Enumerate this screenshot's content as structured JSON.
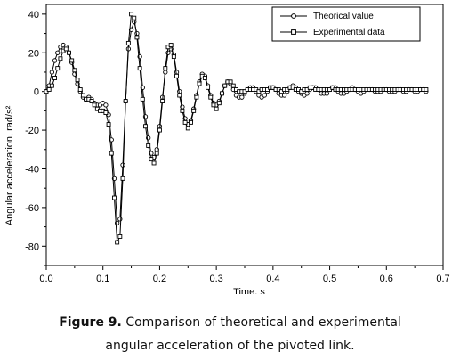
{
  "chart_data": {
    "type": "line",
    "xlabel": "Time, s",
    "ylabel": "Angular acceleration, rad/s²",
    "xlim": [
      0.0,
      0.7
    ],
    "ylim": [
      -90,
      45
    ],
    "xticks": [
      "0.0",
      "0.1",
      "0.2",
      "0.3",
      "0.4",
      "0.5",
      "0.6",
      "0.7"
    ],
    "yticks": [
      "-80",
      "-60",
      "-40",
      "-20",
      "0",
      "20",
      "40"
    ],
    "xtick_values": [
      0.0,
      0.1,
      0.2,
      0.3,
      0.4,
      0.5,
      0.6,
      0.7
    ],
    "ytick_values": [
      -80,
      -60,
      -40,
      -20,
      0,
      20,
      40
    ],
    "legend_position": "top-right",
    "grid": false,
    "series": [
      {
        "name": "Theorical value",
        "marker": "circle",
        "color": "#000000",
        "points": [
          [
            0.0,
            0
          ],
          [
            0.005,
            3
          ],
          [
            0.01,
            10
          ],
          [
            0.015,
            16
          ],
          [
            0.02,
            20
          ],
          [
            0.025,
            23
          ],
          [
            0.03,
            24
          ],
          [
            0.035,
            23
          ],
          [
            0.04,
            20
          ],
          [
            0.045,
            15
          ],
          [
            0.05,
            9
          ],
          [
            0.055,
            4
          ],
          [
            0.06,
            0
          ],
          [
            0.065,
            -3
          ],
          [
            0.07,
            -4
          ],
          [
            0.075,
            -3
          ],
          [
            0.08,
            -4
          ],
          [
            0.085,
            -6
          ],
          [
            0.09,
            -7
          ],
          [
            0.095,
            -7
          ],
          [
            0.1,
            -6
          ],
          [
            0.105,
            -7
          ],
          [
            0.11,
            -12
          ],
          [
            0.115,
            -25
          ],
          [
            0.12,
            -45
          ],
          [
            0.125,
            -68
          ],
          [
            0.13,
            -66
          ],
          [
            0.135,
            -38
          ],
          [
            0.14,
            -5
          ],
          [
            0.145,
            22
          ],
          [
            0.15,
            32
          ],
          [
            0.155,
            36
          ],
          [
            0.16,
            30
          ],
          [
            0.165,
            18
          ],
          [
            0.17,
            2
          ],
          [
            0.175,
            -13
          ],
          [
            0.18,
            -24
          ],
          [
            0.185,
            -32
          ],
          [
            0.19,
            -34
          ],
          [
            0.195,
            -30
          ],
          [
            0.2,
            -18
          ],
          [
            0.205,
            -3
          ],
          [
            0.21,
            10
          ],
          [
            0.215,
            20
          ],
          [
            0.22,
            22
          ],
          [
            0.225,
            19
          ],
          [
            0.23,
            10
          ],
          [
            0.235,
            0
          ],
          [
            0.24,
            -8
          ],
          [
            0.245,
            -14
          ],
          [
            0.25,
            -17
          ],
          [
            0.255,
            -15
          ],
          [
            0.26,
            -9
          ],
          [
            0.265,
            -2
          ],
          [
            0.27,
            5
          ],
          [
            0.275,
            9
          ],
          [
            0.28,
            8
          ],
          [
            0.285,
            3
          ],
          [
            0.29,
            -2
          ],
          [
            0.295,
            -6
          ],
          [
            0.3,
            -7
          ],
          [
            0.305,
            -5
          ],
          [
            0.31,
            -1
          ],
          [
            0.315,
            3
          ],
          [
            0.32,
            5
          ],
          [
            0.325,
            4
          ],
          [
            0.33,
            1
          ],
          [
            0.335,
            -2
          ],
          [
            0.34,
            -3
          ],
          [
            0.345,
            -3
          ],
          [
            0.35,
            -1
          ],
          [
            0.355,
            1
          ],
          [
            0.36,
            2
          ],
          [
            0.365,
            2
          ],
          [
            0.37,
            0
          ],
          [
            0.375,
            -2
          ],
          [
            0.38,
            -3
          ],
          [
            0.385,
            -2
          ],
          [
            0.39,
            0
          ],
          [
            0.395,
            2
          ],
          [
            0.4,
            2
          ],
          [
            0.405,
            1
          ],
          [
            0.41,
            -1
          ],
          [
            0.415,
            -2
          ],
          [
            0.42,
            -2
          ],
          [
            0.425,
            0
          ],
          [
            0.43,
            2
          ],
          [
            0.435,
            3
          ],
          [
            0.44,
            2
          ],
          [
            0.445,
            0
          ],
          [
            0.45,
            -1
          ],
          [
            0.455,
            -2
          ],
          [
            0.46,
            -1
          ],
          [
            0.465,
            1
          ],
          [
            0.47,
            2
          ],
          [
            0.475,
            2
          ],
          [
            0.48,
            1
          ],
          [
            0.485,
            -1
          ],
          [
            0.49,
            -1
          ],
          [
            0.495,
            -1
          ],
          [
            0.5,
            1
          ],
          [
            0.505,
            2
          ],
          [
            0.51,
            2
          ],
          [
            0.515,
            0
          ],
          [
            0.52,
            -1
          ],
          [
            0.525,
            -1
          ],
          [
            0.53,
            0
          ],
          [
            0.535,
            1
          ],
          [
            0.54,
            2
          ],
          [
            0.545,
            1
          ],
          [
            0.55,
            0
          ],
          [
            0.555,
            -1
          ],
          [
            0.56,
            0
          ],
          [
            0.565,
            1
          ],
          [
            0.57,
            1
          ],
          [
            0.575,
            1
          ],
          [
            0.58,
            0
          ],
          [
            0.585,
            0
          ],
          [
            0.59,
            0
          ],
          [
            0.595,
            1
          ],
          [
            0.6,
            1
          ],
          [
            0.605,
            0
          ],
          [
            0.61,
            0
          ],
          [
            0.615,
            0
          ],
          [
            0.62,
            1
          ],
          [
            0.625,
            1
          ],
          [
            0.63,
            0
          ],
          [
            0.635,
            0
          ],
          [
            0.64,
            1
          ],
          [
            0.645,
            1
          ],
          [
            0.65,
            0
          ],
          [
            0.655,
            0
          ],
          [
            0.66,
            1
          ],
          [
            0.665,
            1
          ],
          [
            0.67,
            0
          ]
        ]
      },
      {
        "name": "Experimental data",
        "marker": "square",
        "color": "#000000",
        "points": [
          [
            0.0,
            0
          ],
          [
            0.005,
            1
          ],
          [
            0.01,
            3
          ],
          [
            0.015,
            7
          ],
          [
            0.02,
            12
          ],
          [
            0.025,
            17
          ],
          [
            0.03,
            21
          ],
          [
            0.035,
            22
          ],
          [
            0.04,
            20
          ],
          [
            0.045,
            16
          ],
          [
            0.05,
            11
          ],
          [
            0.055,
            6
          ],
          [
            0.06,
            1
          ],
          [
            0.065,
            -2
          ],
          [
            0.07,
            -4
          ],
          [
            0.075,
            -4
          ],
          [
            0.08,
            -5
          ],
          [
            0.085,
            -7
          ],
          [
            0.09,
            -9
          ],
          [
            0.095,
            -10
          ],
          [
            0.1,
            -10
          ],
          [
            0.105,
            -11
          ],
          [
            0.11,
            -17
          ],
          [
            0.115,
            -32
          ],
          [
            0.12,
            -55
          ],
          [
            0.125,
            -78
          ],
          [
            0.13,
            -75
          ],
          [
            0.135,
            -45
          ],
          [
            0.14,
            -5
          ],
          [
            0.145,
            25
          ],
          [
            0.15,
            40
          ],
          [
            0.155,
            38
          ],
          [
            0.16,
            28
          ],
          [
            0.165,
            12
          ],
          [
            0.17,
            -4
          ],
          [
            0.175,
            -18
          ],
          [
            0.18,
            -28
          ],
          [
            0.185,
            -35
          ],
          [
            0.19,
            -37
          ],
          [
            0.195,
            -32
          ],
          [
            0.2,
            -20
          ],
          [
            0.205,
            -5
          ],
          [
            0.21,
            12
          ],
          [
            0.215,
            23
          ],
          [
            0.22,
            24
          ],
          [
            0.225,
            18
          ],
          [
            0.23,
            8
          ],
          [
            0.235,
            -2
          ],
          [
            0.24,
            -10
          ],
          [
            0.245,
            -16
          ],
          [
            0.25,
            -19
          ],
          [
            0.255,
            -16
          ],
          [
            0.26,
            -10
          ],
          [
            0.265,
            -3
          ],
          [
            0.27,
            4
          ],
          [
            0.275,
            8
          ],
          [
            0.28,
            7
          ],
          [
            0.285,
            2
          ],
          [
            0.29,
            -3
          ],
          [
            0.295,
            -7
          ],
          [
            0.3,
            -9
          ],
          [
            0.305,
            -6
          ],
          [
            0.31,
            -1
          ],
          [
            0.315,
            3
          ],
          [
            0.32,
            5
          ],
          [
            0.325,
            5
          ],
          [
            0.33,
            3
          ],
          [
            0.335,
            1
          ],
          [
            0.34,
            0
          ],
          [
            0.345,
            0
          ],
          [
            0.35,
            0
          ],
          [
            0.355,
            1
          ],
          [
            0.36,
            1
          ],
          [
            0.365,
            1
          ],
          [
            0.37,
            1
          ],
          [
            0.375,
            0
          ],
          [
            0.38,
            1
          ],
          [
            0.385,
            1
          ],
          [
            0.39,
            1
          ],
          [
            0.395,
            2
          ],
          [
            0.4,
            2
          ],
          [
            0.405,
            1
          ],
          [
            0.41,
            1
          ],
          [
            0.415,
            0
          ],
          [
            0.42,
            1
          ],
          [
            0.425,
            1
          ],
          [
            0.43,
            2
          ],
          [
            0.435,
            2
          ],
          [
            0.44,
            1
          ],
          [
            0.445,
            1
          ],
          [
            0.45,
            0
          ],
          [
            0.455,
            1
          ],
          [
            0.46,
            1
          ],
          [
            0.465,
            2
          ],
          [
            0.47,
            2
          ],
          [
            0.475,
            1
          ],
          [
            0.48,
            1
          ],
          [
            0.485,
            1
          ],
          [
            0.49,
            1
          ],
          [
            0.495,
            1
          ],
          [
            0.5,
            1
          ],
          [
            0.505,
            2
          ],
          [
            0.51,
            1
          ],
          [
            0.515,
            1
          ],
          [
            0.52,
            1
          ],
          [
            0.525,
            1
          ],
          [
            0.53,
            1
          ],
          [
            0.535,
            1
          ],
          [
            0.54,
            1
          ],
          [
            0.545,
            1
          ],
          [
            0.55,
            1
          ],
          [
            0.555,
            1
          ],
          [
            0.56,
            1
          ],
          [
            0.565,
            1
          ],
          [
            0.57,
            1
          ],
          [
            0.575,
            1
          ],
          [
            0.58,
            1
          ],
          [
            0.585,
            1
          ],
          [
            0.59,
            1
          ],
          [
            0.595,
            1
          ],
          [
            0.6,
            1
          ],
          [
            0.605,
            1
          ],
          [
            0.61,
            1
          ],
          [
            0.615,
            1
          ],
          [
            0.62,
            1
          ],
          [
            0.625,
            1
          ],
          [
            0.63,
            1
          ],
          [
            0.635,
            1
          ],
          [
            0.64,
            1
          ],
          [
            0.645,
            1
          ],
          [
            0.65,
            1
          ],
          [
            0.655,
            1
          ],
          [
            0.66,
            1
          ],
          [
            0.665,
            1
          ],
          [
            0.67,
            1
          ]
        ]
      }
    ]
  },
  "caption": {
    "label": "Figure 9.",
    "line1": "Comparison of theoretical and experimental",
    "line2": "angular acceleration of the pivoted link."
  }
}
